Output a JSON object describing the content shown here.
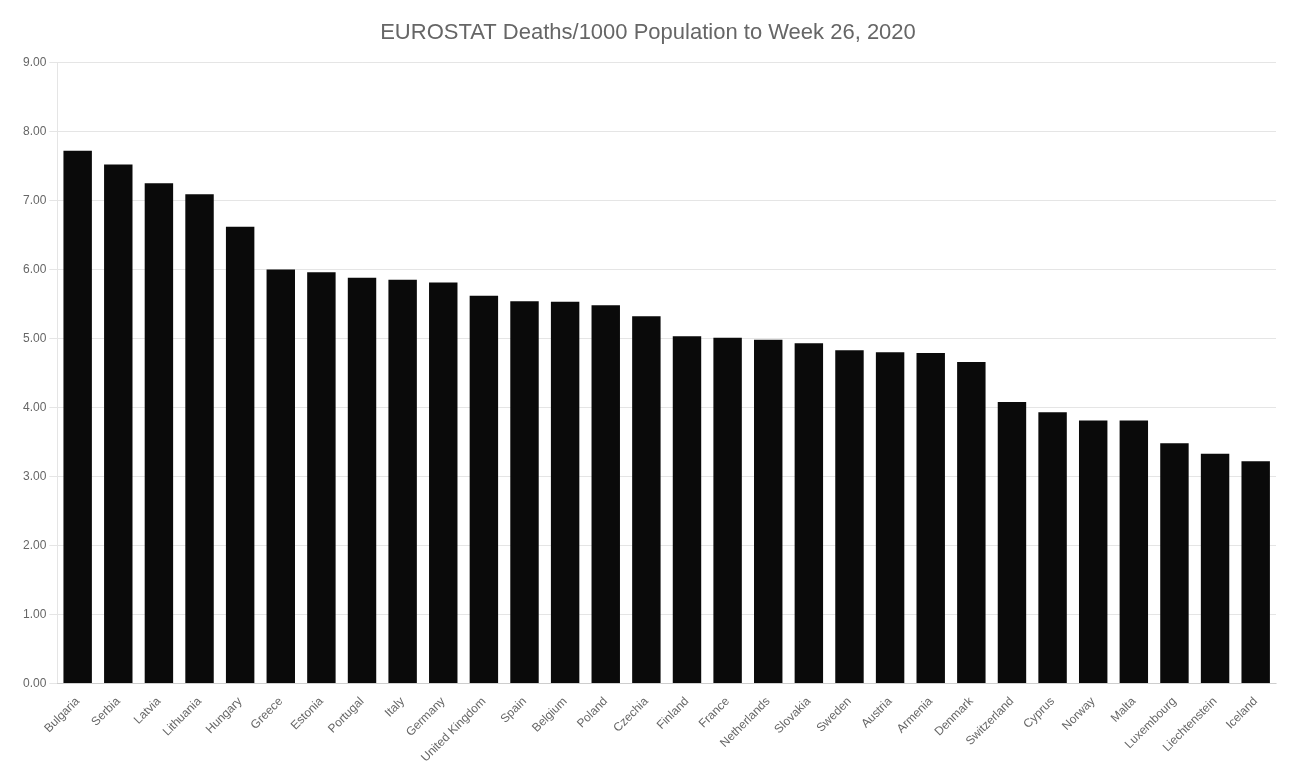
{
  "chart_data": {
    "type": "bar",
    "title": "EUROSTAT Deaths/1000 Population to Week 26, 2020",
    "categories": [
      "Bulgaria",
      "Serbia",
      "Latvia",
      "Lithuania",
      "Hungary",
      "Greece",
      "Estonia",
      "Portugal",
      "Italy",
      "Germany",
      "United Kingdom",
      "Spain",
      "Belgium",
      "Poland",
      "Czechia",
      "Finland",
      "France",
      "Netherlands",
      "Slovakia",
      "Sweden",
      "Austria",
      "Armenia",
      "Denmark",
      "Switzerland",
      "Cyprus",
      "Norway",
      "Malta",
      "Luxembourg",
      "Liechtenstein",
      "Iceland"
    ],
    "values": [
      7.72,
      7.52,
      7.25,
      7.09,
      6.62,
      6.0,
      5.96,
      5.88,
      5.85,
      5.81,
      5.62,
      5.54,
      5.53,
      5.48,
      5.32,
      5.03,
      5.01,
      4.98,
      4.93,
      4.83,
      4.8,
      4.79,
      4.66,
      4.08,
      3.93,
      3.81,
      3.81,
      3.48,
      3.33,
      3.22
    ],
    "color": "#0a0a0a",
    "ylim": [
      0,
      9.0
    ],
    "yticks": [
      {
        "value": 0,
        "label": "0.00"
      },
      {
        "value": 1,
        "label": "1.00"
      },
      {
        "value": 2,
        "label": "2.00"
      },
      {
        "value": 3,
        "label": "3.00"
      },
      {
        "value": 4,
        "label": "4.00"
      },
      {
        "value": 5,
        "label": "5.00"
      },
      {
        "value": 6,
        "label": "6.00"
      },
      {
        "value": 7,
        "label": "7.00"
      },
      {
        "value": 8,
        "label": "8.00"
      },
      {
        "value": 9,
        "label": "9.00"
      }
    ],
    "grid": true
  }
}
